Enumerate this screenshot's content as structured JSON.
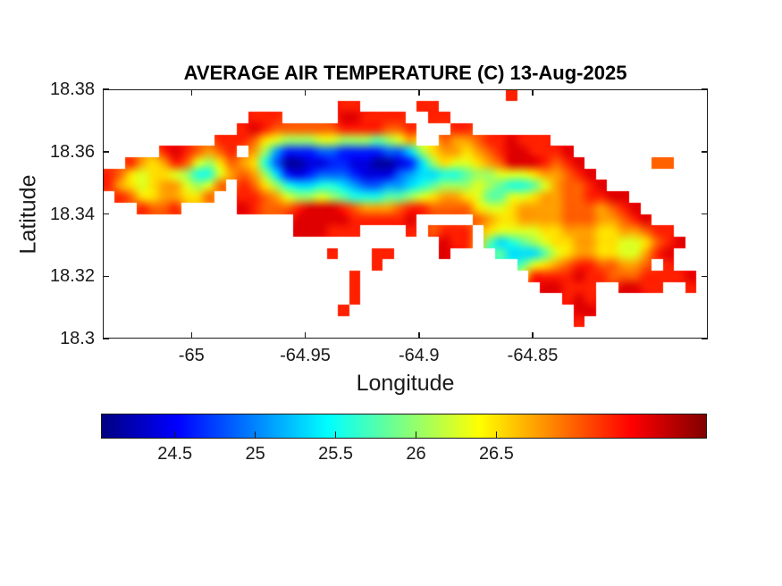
{
  "figure": {
    "background": "#ffffff",
    "axes_color": "#1a1a1a",
    "text_color": "#1a1a1a"
  },
  "chart_data": {
    "type": "heatmap",
    "title": "AVERAGE AIR TEMPERATURE (C) 13-Aug-2025",
    "xlabel": "Longitude",
    "ylabel": "Latitude",
    "units": "degrees C",
    "grid_lines": false,
    "xlim": [
      -65.039,
      -64.773
    ],
    "ylim": [
      18.3,
      18.38
    ],
    "x_ticks": [
      -65,
      -64.95,
      -64.9,
      -64.85
    ],
    "x_tick_labels": [
      "-65",
      "-64.95",
      "-64.9",
      "-64.85"
    ],
    "y_ticks": [
      18.38,
      18.36,
      18.34,
      18.32,
      18.3
    ],
    "y_tick_labels": [
      "18.38",
      "18.36",
      "18.34",
      "18.32",
      "18.3"
    ],
    "colorbar": {
      "colormap": "jet",
      "orientation": "horizontal",
      "min": 24.04,
      "max": 27.81,
      "ticks": [
        24.5,
        25,
        25.5,
        26,
        26.5
      ],
      "tick_labels": [
        "24.5",
        "25",
        "25.5",
        "26",
        "26.5"
      ],
      "gradient_stops": [
        [
          "0%",
          "#000080"
        ],
        [
          "12.5%",
          "#0000ff"
        ],
        [
          "37.5%",
          "#00ffff"
        ],
        [
          "62.5%",
          "#ffff00"
        ],
        [
          "87.5%",
          "#ff0000"
        ],
        [
          "100%",
          "#800000"
        ]
      ]
    },
    "grid": {
      "comment": "Temperature field over the island; '.' = sea (no data). Char i of levels maps to level_values_c[i].",
      "ncols": 54,
      "nrows": 22,
      "sea_char": ".",
      "levels": "0123456789abcdef",
      "level_values_c": [
        24.16,
        24.39,
        24.63,
        24.86,
        25.1,
        25.34,
        25.57,
        25.81,
        26.04,
        26.28,
        26.51,
        26.75,
        26.98,
        27.22,
        27.45,
        27.69
      ],
      "rows": [
        "....................................d.................",
        ".....................dd.....dd........................",
        ".............ddd.....eedddd..dd.......................",
        "............dedccccccddddccd...dd.....................",
        "..........dddca988899888789b..cbbcddeddd..............",
        ".....dedcbcd.b842223322223358abbabcdeeddde............",
        "..dbabdc98acba6300112211001258a99abceeedcde......cc...",
        "dca9aa98669bcb852123332111345566788999abbcde..........",
        "dba9abb989c.dca8655665433445678889876679bccde.........",
        ".dcaabbaac..ddcb9889876667789abba97799abbccddee.......",
        "...dccd.....edcccdeeedcbbbcddcccca99abbbbcccbcde......",
        ".................eeeeeddddde.....cbaabbbbcccbbcde.....",
        ".................eeeddd....d.cddd.a9999aabbbaabbcdd...",
        "..............................edd.756789aabbaa99acde..",
        "....................d...dd....e....755579abbaa99bde...",
        "........................d............79abcddccbbc.d...",
        "......................d...............ddddeddcccdddde.",
        "......................d................eeddd..eedd..d.",
        "......................d..................ded..........",
        ".....................d....................ee..........",
        "..........................................d...........",
        "......................................................"
      ]
    }
  }
}
